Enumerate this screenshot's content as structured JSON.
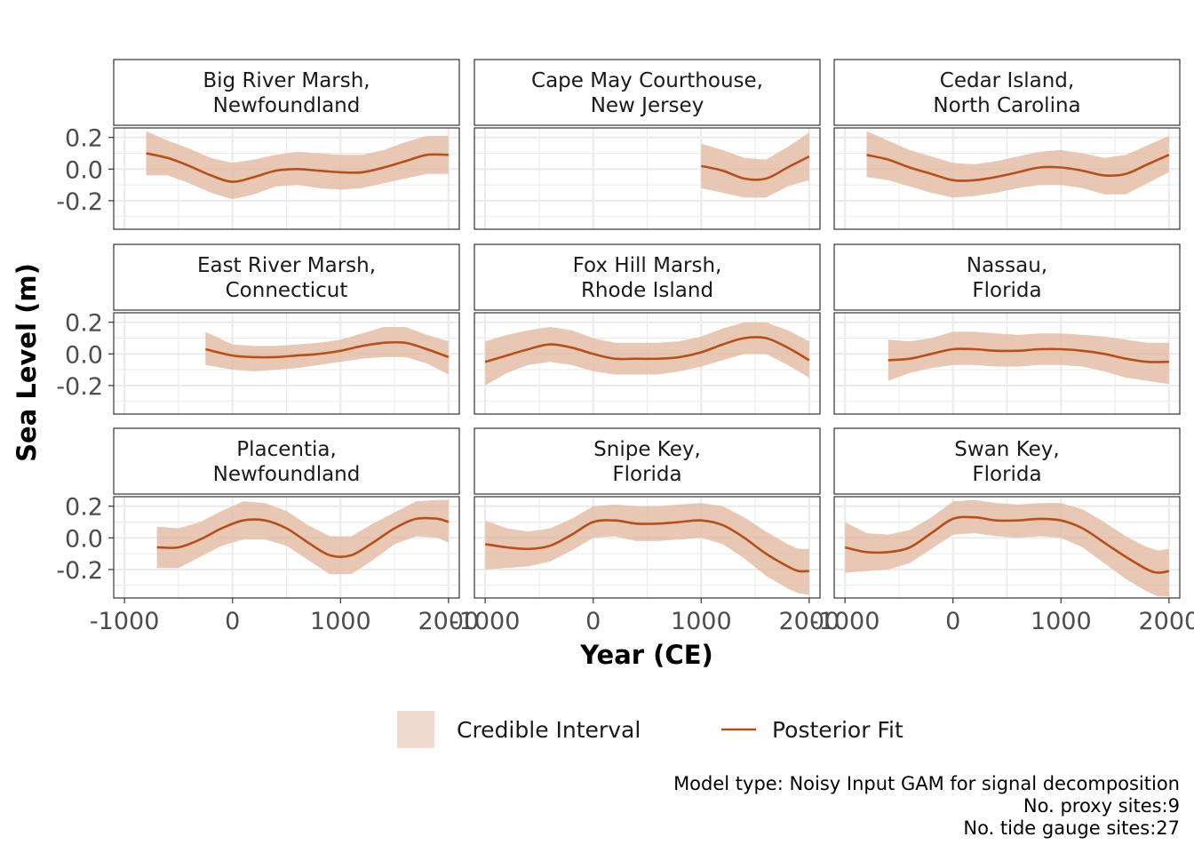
{
  "chart_data": {
    "type": "line",
    "facets": [
      {
        "title": [
          "Big River Marsh,",
          "Newfoundland"
        ],
        "x": [
          -800,
          -600,
          -400,
          -200,
          0,
          200,
          400,
          600,
          800,
          1000,
          1200,
          1400,
          1600,
          1800,
          2000
        ],
        "y": [
          0.1,
          0.07,
          0.02,
          -0.04,
          -0.08,
          -0.05,
          -0.01,
          0.0,
          -0.01,
          -0.02,
          -0.02,
          0.01,
          0.05,
          0.09,
          0.09
        ],
        "lower": [
          -0.04,
          -0.04,
          -0.09,
          -0.15,
          -0.19,
          -0.16,
          -0.11,
          -0.1,
          -0.12,
          -0.13,
          -0.12,
          -0.09,
          -0.06,
          -0.03,
          -0.03
        ],
        "upper": [
          0.24,
          0.18,
          0.13,
          0.07,
          0.04,
          0.06,
          0.09,
          0.11,
          0.1,
          0.09,
          0.09,
          0.12,
          0.17,
          0.21,
          0.21
        ]
      },
      {
        "title": [
          "Cape May Courthouse,",
          "New Jersey"
        ],
        "x": [
          1000,
          1200,
          1400,
          1600,
          1800,
          2000
        ],
        "y": [
          0.02,
          -0.01,
          -0.06,
          -0.06,
          0.01,
          0.08
        ],
        "lower": [
          -0.12,
          -0.15,
          -0.18,
          -0.18,
          -0.11,
          -0.07
        ],
        "upper": [
          0.16,
          0.12,
          0.07,
          0.06,
          0.14,
          0.23
        ]
      },
      {
        "title": [
          "Cedar Island,",
          "North Carolina"
        ],
        "x": [
          -800,
          -600,
          -400,
          -200,
          0,
          200,
          400,
          600,
          800,
          1000,
          1200,
          1400,
          1600,
          1800,
          2000
        ],
        "y": [
          0.09,
          0.06,
          0.01,
          -0.03,
          -0.07,
          -0.07,
          -0.05,
          -0.02,
          0.01,
          0.01,
          -0.01,
          -0.04,
          -0.03,
          0.03,
          0.09
        ],
        "lower": [
          -0.05,
          -0.07,
          -0.11,
          -0.15,
          -0.18,
          -0.17,
          -0.15,
          -0.12,
          -0.1,
          -0.1,
          -0.12,
          -0.16,
          -0.16,
          -0.09,
          -0.02
        ],
        "upper": [
          0.24,
          0.18,
          0.12,
          0.08,
          0.04,
          0.03,
          0.05,
          0.08,
          0.11,
          0.12,
          0.1,
          0.07,
          0.09,
          0.15,
          0.21
        ]
      },
      {
        "title": [
          "East River Marsh,",
          "Connecticut"
        ],
        "x": [
          -250,
          0,
          200,
          400,
          600,
          800,
          1000,
          1200,
          1400,
          1600,
          1800,
          2000
        ],
        "y": [
          0.03,
          -0.01,
          -0.02,
          -0.02,
          -0.01,
          0.0,
          0.02,
          0.05,
          0.07,
          0.07,
          0.03,
          -0.02
        ],
        "lower": [
          -0.07,
          -0.1,
          -0.11,
          -0.1,
          -0.09,
          -0.07,
          -0.05,
          -0.03,
          -0.02,
          -0.02,
          -0.06,
          -0.13
        ],
        "upper": [
          0.14,
          0.06,
          0.05,
          0.05,
          0.06,
          0.07,
          0.09,
          0.13,
          0.17,
          0.17,
          0.12,
          0.08
        ]
      },
      {
        "title": [
          "Fox Hill Marsh,",
          "Rhode Island"
        ],
        "x": [
          -1000,
          -800,
          -600,
          -400,
          -200,
          0,
          200,
          400,
          600,
          800,
          1000,
          1200,
          1400,
          1600,
          1800,
          2000
        ],
        "y": [
          -0.05,
          -0.01,
          0.03,
          0.06,
          0.04,
          0.0,
          -0.03,
          -0.03,
          -0.03,
          -0.02,
          0.01,
          0.06,
          0.1,
          0.1,
          0.04,
          -0.04
        ],
        "lower": [
          -0.2,
          -0.12,
          -0.07,
          -0.05,
          -0.07,
          -0.11,
          -0.13,
          -0.13,
          -0.13,
          -0.11,
          -0.08,
          -0.04,
          0.0,
          0.0,
          -0.07,
          -0.15
        ],
        "upper": [
          0.08,
          0.12,
          0.15,
          0.17,
          0.15,
          0.1,
          0.07,
          0.07,
          0.07,
          0.08,
          0.11,
          0.16,
          0.2,
          0.2,
          0.15,
          0.08
        ]
      },
      {
        "title": [
          "Nassau,",
          "Florida"
        ],
        "x": [
          -600,
          -400,
          -200,
          0,
          200,
          400,
          600,
          800,
          1000,
          1200,
          1400,
          1600,
          1800,
          2000
        ],
        "y": [
          -0.04,
          -0.03,
          0.0,
          0.03,
          0.03,
          0.02,
          0.02,
          0.03,
          0.03,
          0.02,
          0.0,
          -0.03,
          -0.05,
          -0.05
        ],
        "lower": [
          -0.17,
          -0.12,
          -0.09,
          -0.07,
          -0.07,
          -0.08,
          -0.08,
          -0.07,
          -0.07,
          -0.08,
          -0.11,
          -0.15,
          -0.17,
          -0.19
        ],
        "upper": [
          0.09,
          0.08,
          0.1,
          0.14,
          0.14,
          0.13,
          0.12,
          0.13,
          0.13,
          0.12,
          0.11,
          0.09,
          0.07,
          0.07
        ]
      },
      {
        "title": [
          "Placentia,",
          "Newfoundland"
        ],
        "x": [
          -700,
          -500,
          -300,
          -100,
          100,
          300,
          500,
          700,
          900,
          1100,
          1300,
          1500,
          1700,
          1900,
          2000
        ],
        "y": [
          -0.06,
          -0.06,
          -0.01,
          0.06,
          0.11,
          0.11,
          0.06,
          -0.03,
          -0.11,
          -0.11,
          -0.03,
          0.06,
          0.12,
          0.12,
          0.1
        ],
        "lower": [
          -0.19,
          -0.19,
          -0.12,
          -0.05,
          -0.01,
          -0.01,
          -0.05,
          -0.14,
          -0.23,
          -0.23,
          -0.14,
          -0.04,
          0.01,
          0.0,
          -0.03
        ],
        "upper": [
          0.07,
          0.06,
          0.1,
          0.17,
          0.23,
          0.22,
          0.17,
          0.08,
          0.01,
          0.01,
          0.09,
          0.16,
          0.23,
          0.24,
          0.24
        ]
      },
      {
        "title": [
          "Snipe Key,",
          "Florida"
        ],
        "x": [
          -1000,
          -800,
          -600,
          -400,
          -200,
          0,
          200,
          400,
          600,
          800,
          1000,
          1200,
          1400,
          1600,
          1800,
          1900,
          2000
        ],
        "y": [
          -0.04,
          -0.06,
          -0.07,
          -0.05,
          0.02,
          0.1,
          0.11,
          0.09,
          0.09,
          0.1,
          0.11,
          0.08,
          0.0,
          -0.1,
          -0.18,
          -0.21,
          -0.21
        ],
        "lower": [
          -0.2,
          -0.19,
          -0.18,
          -0.15,
          -0.08,
          0.0,
          0.01,
          -0.02,
          -0.02,
          -0.01,
          0.0,
          -0.04,
          -0.13,
          -0.24,
          -0.32,
          -0.35,
          -0.36
        ],
        "upper": [
          0.11,
          0.06,
          0.04,
          0.06,
          0.12,
          0.2,
          0.21,
          0.2,
          0.2,
          0.21,
          0.22,
          0.2,
          0.13,
          0.04,
          -0.04,
          -0.07,
          -0.07
        ]
      },
      {
        "title": [
          "Swan Key,",
          "Florida"
        ],
        "x": [
          -1000,
          -800,
          -600,
          -400,
          -200,
          0,
          200,
          400,
          600,
          800,
          1000,
          1200,
          1400,
          1600,
          1800,
          1900,
          2000
        ],
        "y": [
          -0.06,
          -0.09,
          -0.09,
          -0.06,
          0.03,
          0.12,
          0.13,
          0.11,
          0.11,
          0.12,
          0.11,
          0.06,
          -0.03,
          -0.12,
          -0.2,
          -0.22,
          -0.21
        ],
        "lower": [
          -0.22,
          -0.21,
          -0.2,
          -0.16,
          -0.07,
          0.02,
          0.03,
          0.01,
          0.0,
          0.01,
          0.0,
          -0.06,
          -0.16,
          -0.26,
          -0.34,
          -0.37,
          -0.37
        ],
        "upper": [
          0.1,
          0.03,
          0.02,
          0.05,
          0.13,
          0.23,
          0.24,
          0.22,
          0.21,
          0.22,
          0.22,
          0.18,
          0.1,
          0.01,
          -0.06,
          -0.08,
          -0.07
        ]
      }
    ],
    "xlabel": "Year (CE)",
    "ylabel": "Sea Level (m)",
    "xlim": [
      -1100,
      2100
    ],
    "ylim": [
      -0.38,
      0.26
    ],
    "xticks": [
      -1000,
      0,
      1000,
      2000
    ],
    "xtick_labels": [
      "-1000",
      "0",
      "1000",
      "2000"
    ],
    "yticks": [
      0.2,
      0.0,
      -0.2
    ],
    "ytick_labels": [
      "0.2",
      "0.0",
      "-0.2"
    ],
    "grid": true,
    "legend_position": "bottom",
    "legend": [
      {
        "label": "Credible Interval",
        "kind": "ribbon"
      },
      {
        "label": "Posterior Fit",
        "kind": "line"
      }
    ],
    "caption": [
      "Model type: Noisy Input GAM for signal decomposition",
      "No. proxy sites:9",
      "No. tide gauge sites:27"
    ],
    "colors": {
      "line": "#b5501a",
      "ribbon": "#e3bba5",
      "legend_ribbon": "#efdad0",
      "grid": "#ebebeb",
      "panel_border": "#333333"
    }
  }
}
